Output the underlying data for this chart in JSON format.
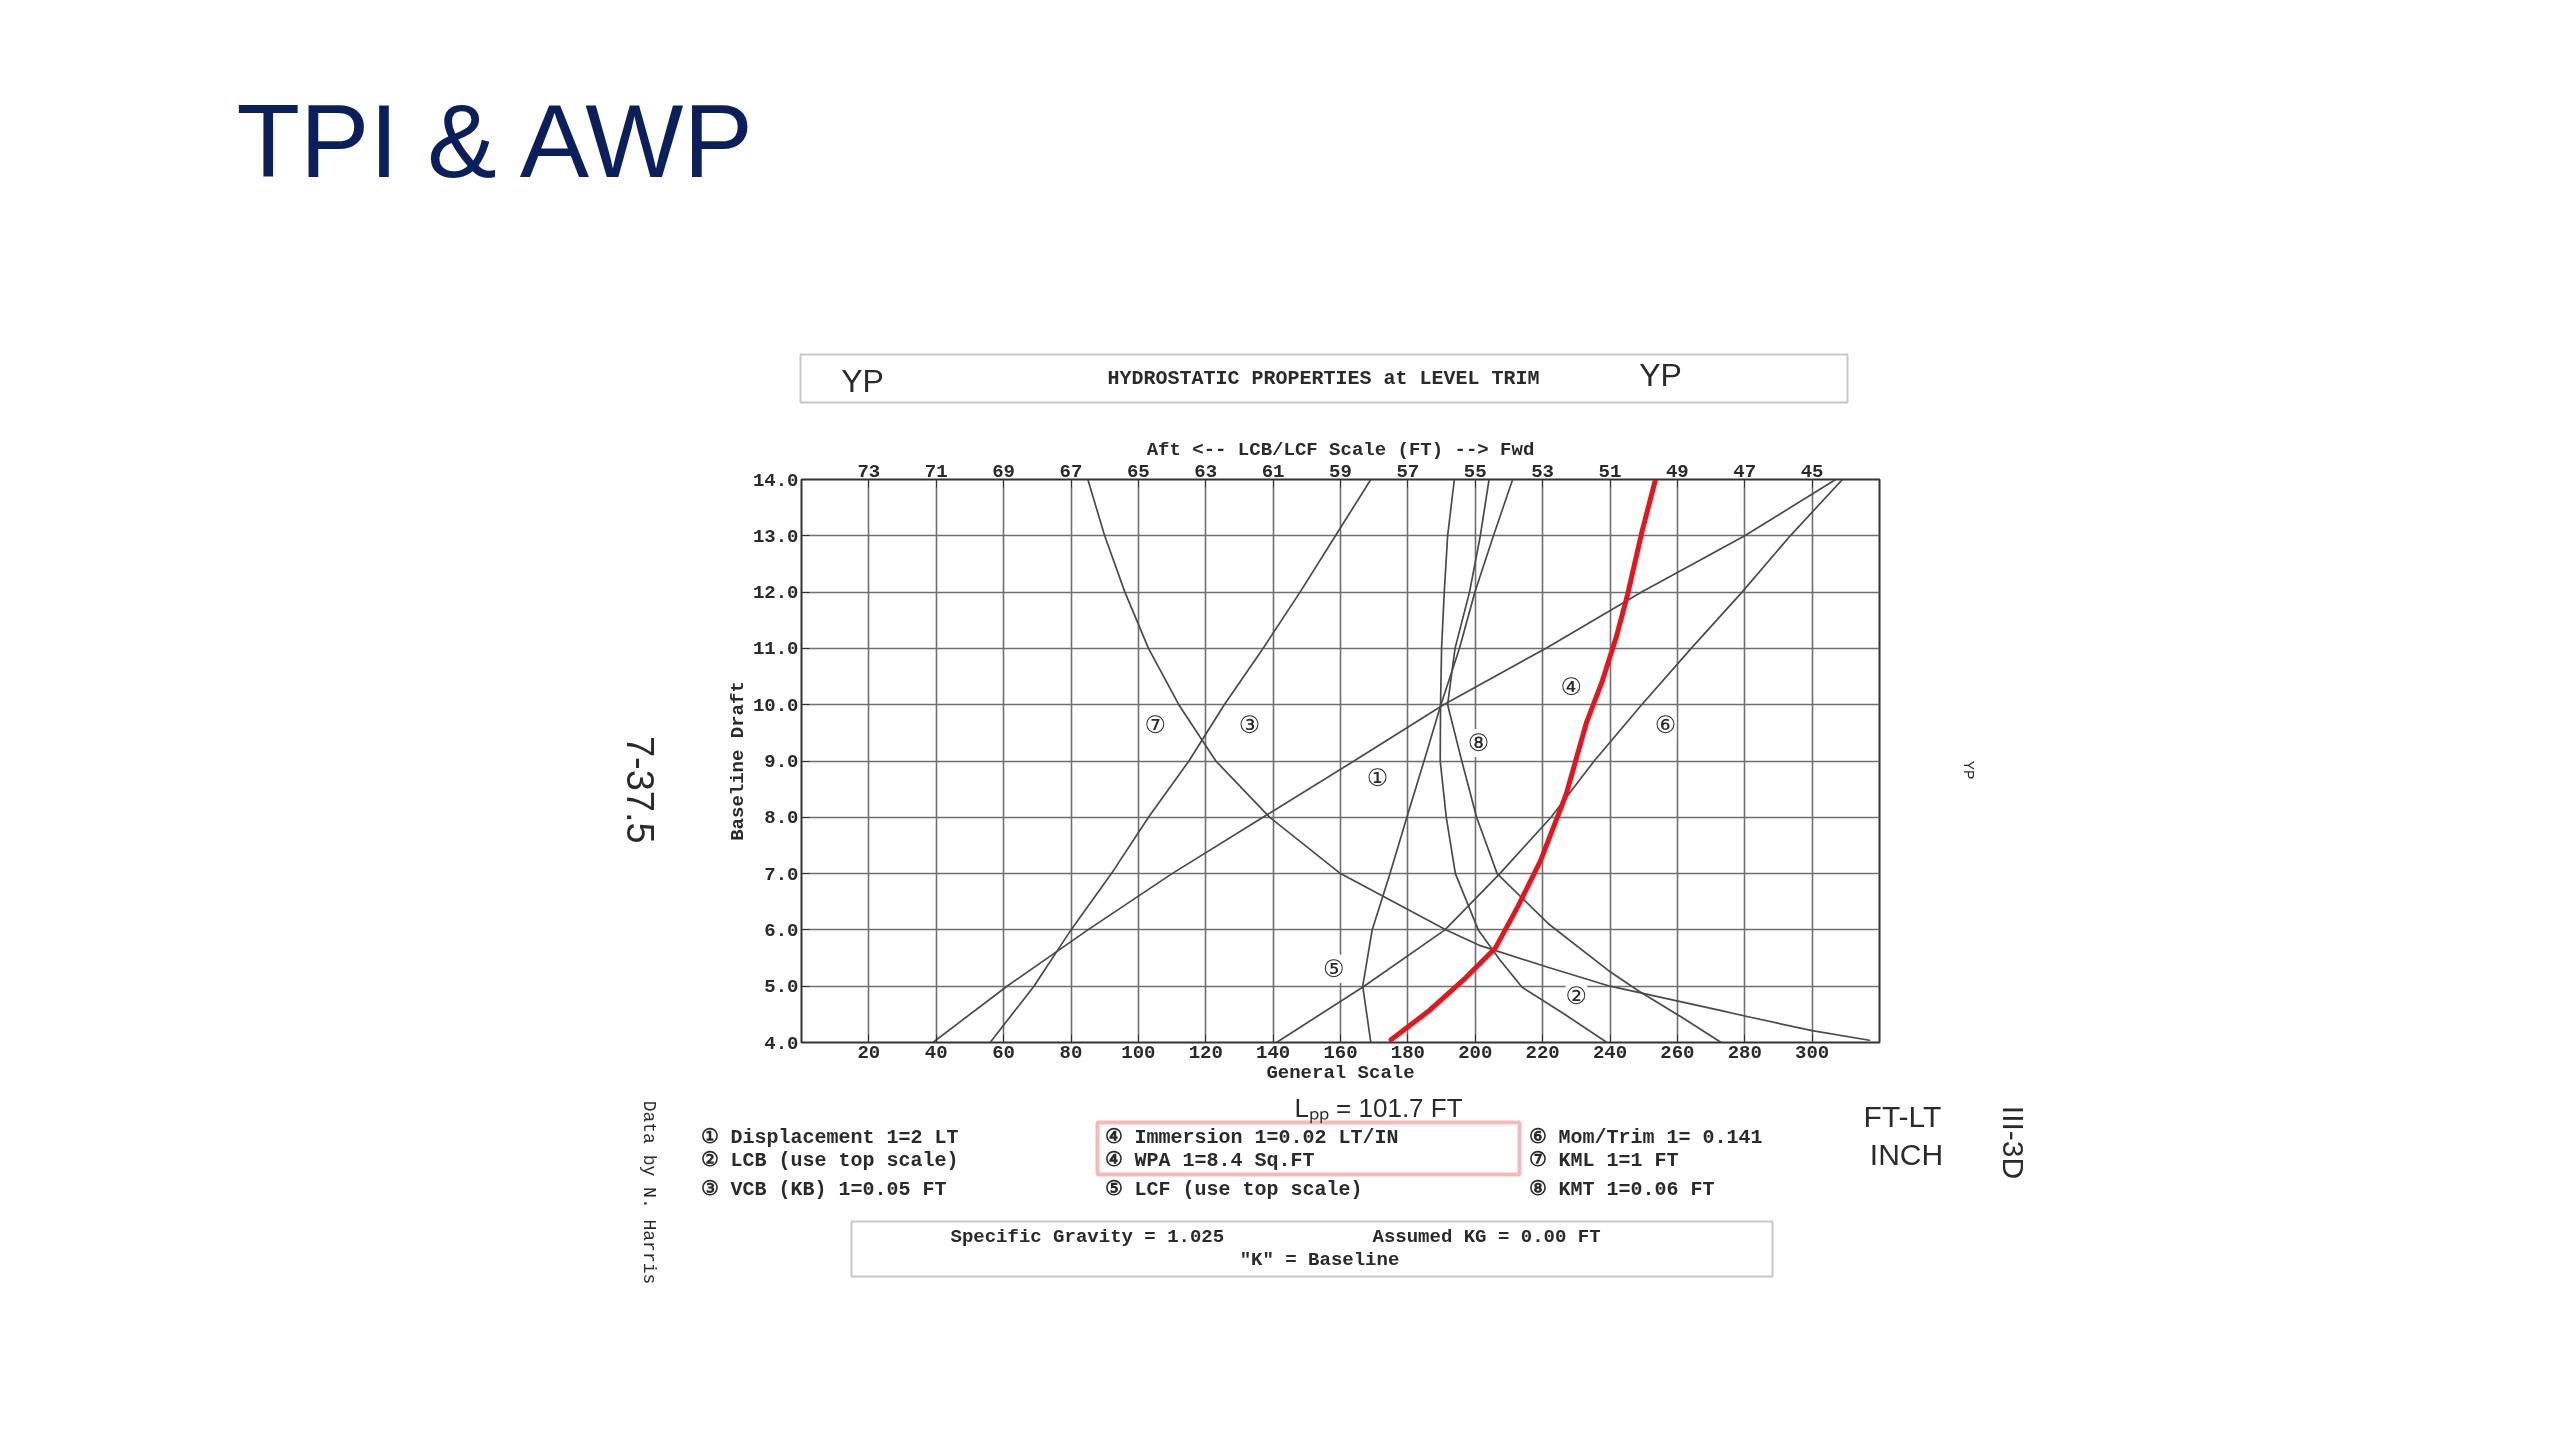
{
  "chart_data": {
    "type": "line",
    "title": "TPI & AWP",
    "subtitle": "HYDROSTATIC PROPERTIES at LEVEL TRIM",
    "xlabel": "General Scale",
    "x2label": "Aft <-- LCB/LCF Scale (FT) --> Fwd",
    "ylabel": "Baseline Draft",
    "xlim": [
      0,
      320
    ],
    "xticks": [
      20,
      40,
      60,
      80,
      100,
      120,
      140,
      160,
      180,
      200,
      220,
      240,
      260,
      280,
      300
    ],
    "x2lim": [
      75,
      43
    ],
    "x2ticks": [
      73,
      71,
      69,
      67,
      65,
      63,
      61,
      59,
      57,
      55,
      53,
      51,
      49,
      47,
      45
    ],
    "ylim": [
      4,
      14
    ],
    "yticks": [
      {
        "value": 4,
        "label": "4.0"
      },
      {
        "value": 5,
        "label": "5.0"
      },
      {
        "value": 6,
        "label": "6.0"
      },
      {
        "value": 7,
        "label": "7.0"
      },
      {
        "value": 8,
        "label": "8.0"
      },
      {
        "value": 9,
        "label": "9.0"
      },
      {
        "value": 10,
        "label": "10.0"
      },
      {
        "value": 11,
        "label": "11.0"
      },
      {
        "value": 12,
        "label": "12.0"
      },
      {
        "value": 13,
        "label": "13.0"
      },
      {
        "value": 14,
        "label": "14.0"
      }
    ],
    "grid": true,
    "series": [
      {
        "color": "#4a4a4a",
        "x": [
          39,
          61,
          85,
          110,
          137,
          164,
          190.6,
          220.9,
          249.4,
          280,
          307
        ],
        "values": [
          4,
          5,
          6,
          7,
          8,
          9,
          10,
          11,
          12,
          13,
          14
        ]
      },
      {
        "color": "#4a4a4a",
        "axis": "x2",
        "x": [
          51.09,
          52.37,
          53.61,
          54.26,
          54.91,
          55.59,
          55.86,
          56.04,
          56.03,
          56.0,
          55.92,
          55.82,
          55.62
        ],
        "values": [
          4,
          4.51,
          4.98,
          5.46,
          6,
          7,
          8,
          9,
          10,
          11,
          12,
          13,
          14
        ]
      },
      {
        "color": "#4a4a4a",
        "x": [
          56,
          69,
          80,
          92,
          103,
          115,
          125.5,
          137,
          148,
          158.5,
          169
        ],
        "values": [
          4,
          5,
          6,
          7,
          8,
          9,
          10,
          11,
          12,
          13,
          14
        ]
      },
      {
        "color": "#e8141b",
        "x": [
          175,
          186,
          197,
          206,
          212.6,
          219.4,
          227,
          233,
          237.6,
          242,
          245.2,
          249.4,
          253.5
        ],
        "values": [
          4.05,
          4.55,
          5.14,
          5.68,
          6.41,
          7.23,
          8.41,
          9.68,
          10.4,
          11.23,
          11.95,
          13.05,
          14
        ]
      },
      {
        "color": "#4a4a4a",
        "axis": "x2",
        "x": [
          58.1,
          58.34,
          58.06,
          57.53,
          57.03,
          56.52,
          56.02,
          55.47,
          55.01,
          54.46,
          53.89
        ],
        "values": [
          4,
          5,
          6,
          7,
          8,
          9,
          10,
          11,
          12,
          13,
          14
        ]
      },
      {
        "color": "#4a4a4a",
        "x": [
          141,
          167,
          191,
          207.3,
          222.5,
          235.3,
          249.4,
          264.1,
          279.2,
          293.5,
          309
        ],
        "values": [
          4,
          5,
          6,
          7,
          8,
          9,
          10,
          11,
          12,
          13,
          14
        ]
      },
      {
        "color": "#4a4a4a",
        "x": [
          317,
          300,
          280,
          272.7,
          240,
          221.3,
          201.5,
          191.4,
          160,
          139,
          123,
          112,
          103,
          96,
          90,
          85
        ],
        "values": [
          4.04,
          4.21,
          4.47,
          4.57,
          5,
          5.34,
          5.72,
          6,
          7,
          8,
          9,
          10,
          11,
          12,
          13,
          14
        ]
      },
      {
        "color": "#4a4a4a",
        "x": [
          273,
          261.3,
          248.4,
          239.5,
          221.7,
          206.5,
          200.4,
          196,
          191.8,
          194,
          198.3,
          201.5,
          204.1
        ],
        "values": [
          4,
          4.45,
          4.92,
          5.28,
          6.11,
          7,
          8,
          9,
          10,
          11,
          12,
          13,
          14
        ]
      }
    ],
    "annotations": [
      "YP",
      "YP",
      "Lₚₚ = 101.7 FT",
      "① Displacement 1=2 LT",
      "② LCB (use top scale)",
      "③ VCB (KB) 1=0.05 FT",
      "④ Immersion 1=0.02 LT/IN",
      "④ WPA 1=8.4 Sq.FT",
      "⑤ LCF (use top scale)",
      "⑥ Mom/Trim 1= 0.141",
      "FT-LT",
      "INCH",
      "⑦ KML 1=1 FT",
      "⑧ KMT 1=0.06 FT",
      "Specific Gravity = 1.025",
      "Assumed KG = 0.00 FT",
      "\"K\" = Baseline",
      "Data by N. Harris",
      "7-37.5",
      "III-3D",
      "YP",
      "⑦",
      "③",
      "①",
      "⑧",
      "④",
      "⑥",
      "⑤",
      "②"
    ]
  }
}
